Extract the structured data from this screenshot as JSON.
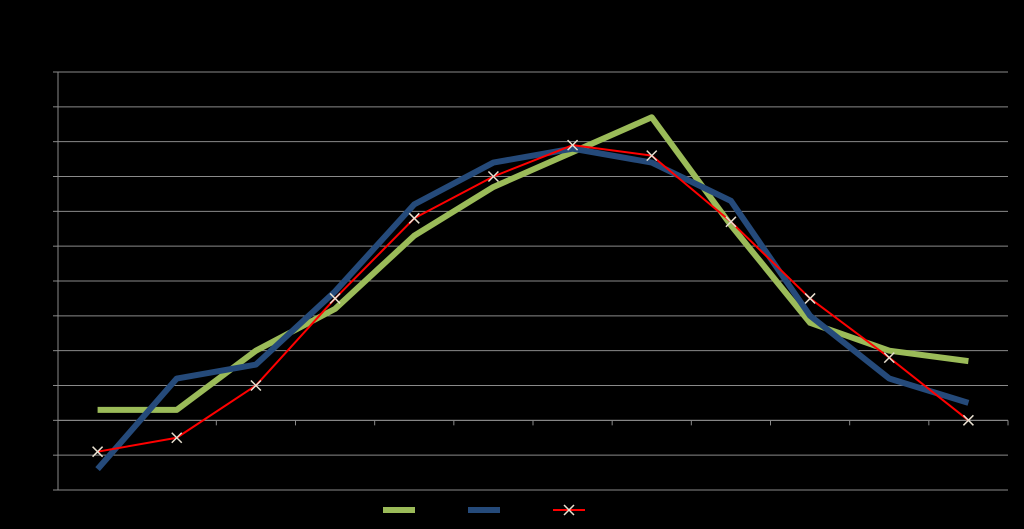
{
  "chart_data": {
    "type": "line",
    "categories": [
      null,
      null,
      null,
      null,
      null,
      null,
      null,
      null,
      null,
      null,
      null,
      null
    ],
    "series": [
      {
        "color": "#9bbb59",
        "width": 6,
        "values": [
          0.3,
          0.3,
          2.0,
          3.2,
          5.3,
          6.7,
          7.7,
          8.7,
          5.6,
          2.8,
          2.0,
          1.7
        ]
      },
      {
        "color": "#254a7a",
        "width": 6,
        "values": [
          -1.4,
          1.2,
          1.6,
          3.7,
          6.2,
          7.4,
          7.8,
          7.4,
          6.3,
          3.0,
          1.2,
          0.5
        ]
      },
      {
        "color": "#ff0000",
        "width": 2,
        "marker": "x",
        "values": [
          -0.9,
          -0.5,
          1.0,
          3.5,
          5.8,
          7.0,
          7.9,
          7.6,
          5.7,
          3.5,
          1.8,
          0.0
        ]
      }
    ],
    "ylim": [
      -2,
      10
    ],
    "yticks": [
      -2,
      -1,
      0,
      1,
      2,
      3,
      4,
      5,
      6,
      7,
      8,
      9,
      10
    ],
    "grid": true
  }
}
